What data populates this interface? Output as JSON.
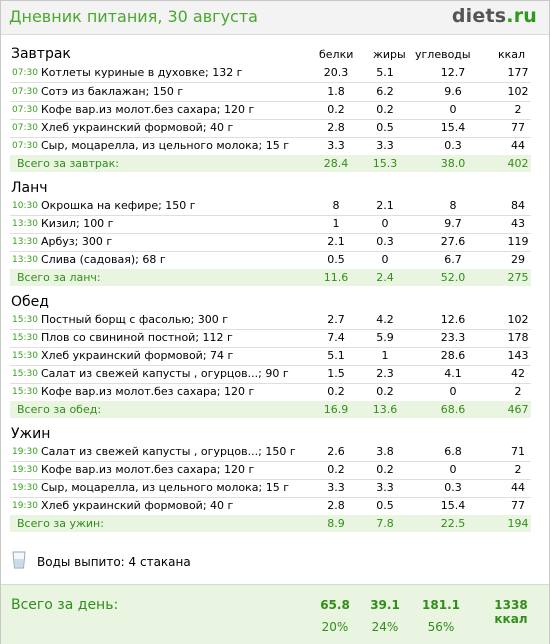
{
  "header": {
    "title": "Дневник питания, 30 августа",
    "logo_main": "diets",
    "logo_suffix": ".ru"
  },
  "columns": {
    "protein": "белки",
    "fat": "жиры",
    "carbs": "углеводы",
    "kcal": "ккал"
  },
  "sections": {
    "breakfast": {
      "name": "Завтрак",
      "rows": [
        {
          "time": "07:30",
          "name": "Котлеты куриные в духовке; 132 г",
          "p": "20.3",
          "f": "5.1",
          "c": "12.7",
          "k": "177"
        },
        {
          "time": "07:30",
          "name": "Сотэ из баклажан; 150 г",
          "p": "1.8",
          "f": "6.2",
          "c": "9.6",
          "k": "102"
        },
        {
          "time": "07:30",
          "name": "Кофе вар.из молот.без сахара; 120 г",
          "p": "0.2",
          "f": "0.2",
          "c": "0",
          "k": "2"
        },
        {
          "time": "07:30",
          "name": "Хлеб украинский формовой; 40 г",
          "p": "2.8",
          "f": "0.5",
          "c": "15.4",
          "k": "77"
        },
        {
          "time": "07:30",
          "name": "Сыр, моцарелла, из цельного молока; 15 г",
          "p": "3.3",
          "f": "3.3",
          "c": "0.3",
          "k": "44"
        }
      ],
      "total": {
        "label": "Всего за завтрак:",
        "p": "28.4",
        "f": "15.3",
        "c": "38.0",
        "k": "402"
      }
    },
    "lunch": {
      "name": "Ланч",
      "rows": [
        {
          "time": "10:30",
          "name": "Окрошка на кефире; 150 г",
          "p": "8",
          "f": "2.1",
          "c": "8",
          "k": "84"
        },
        {
          "time": "13:30",
          "name": "Кизил; 100 г",
          "p": "1",
          "f": "0",
          "c": "9.7",
          "k": "43"
        },
        {
          "time": "13:30",
          "name": "Арбуз; 300 г",
          "p": "2.1",
          "f": "0.3",
          "c": "27.6",
          "k": "119"
        },
        {
          "time": "13:30",
          "name": "Слива (садовая); 68 г",
          "p": "0.5",
          "f": "0",
          "c": "6.7",
          "k": "29"
        }
      ],
      "total": {
        "label": "Всего за ланч:",
        "p": "11.6",
        "f": "2.4",
        "c": "52.0",
        "k": "275"
      }
    },
    "dinner": {
      "name": "Обед",
      "rows": [
        {
          "time": "15:30",
          "name": "Постный борщ с фасолью; 300 г",
          "p": "2.7",
          "f": "4.2",
          "c": "12.6",
          "k": "102"
        },
        {
          "time": "15:30",
          "name": "Плов со свининой постной; 112 г",
          "p": "7.4",
          "f": "5.9",
          "c": "23.3",
          "k": "178"
        },
        {
          "time": "15:30",
          "name": "Хлеб украинский формовой; 74 г",
          "p": "5.1",
          "f": "1",
          "c": "28.6",
          "k": "143"
        },
        {
          "time": "15:30",
          "name": "Салат из свежей капусты , огурцов...; 90 г",
          "p": "1.5",
          "f": "2.3",
          "c": "4.1",
          "k": "42"
        },
        {
          "time": "15:30",
          "name": "Кофе вар.из молот.без сахара; 120 г",
          "p": "0.2",
          "f": "0.2",
          "c": "0",
          "k": "2"
        }
      ],
      "total": {
        "label": "Всего за обед:",
        "p": "16.9",
        "f": "13.6",
        "c": "68.6",
        "k": "467"
      }
    },
    "supper": {
      "name": "Ужин",
      "rows": [
        {
          "time": "19:30",
          "name": "Салат из свежей капусты , огурцов...; 150 г",
          "p": "2.6",
          "f": "3.8",
          "c": "6.8",
          "k": "71"
        },
        {
          "time": "19:30",
          "name": "Кофе вар.из молот.без сахара; 120 г",
          "p": "0.2",
          "f": "0.2",
          "c": "0",
          "k": "2"
        },
        {
          "time": "19:30",
          "name": "Сыр, моцарелла, из цельного молока; 15 г",
          "p": "3.3",
          "f": "3.3",
          "c": "0.3",
          "k": "44"
        },
        {
          "time": "19:30",
          "name": "Хлеб украинский формовой; 40 г",
          "p": "2.8",
          "f": "0.5",
          "c": "15.4",
          "k": "77"
        }
      ],
      "total": {
        "label": "Всего за ужин:",
        "p": "8.9",
        "f": "7.8",
        "c": "22.5",
        "k": "194"
      }
    }
  },
  "water": {
    "text": "Воды выпито: 4 стакана",
    "icon": "glass-icon"
  },
  "day_total": {
    "label": "Всего за день:",
    "p": "65.8",
    "f": "39.1",
    "c": "181.1",
    "k": "1338 ккал",
    "p_pct": "20%",
    "f_pct": "24%",
    "c_pct": "56%"
  },
  "colors": {
    "accent_green": "#2f8f18",
    "time_green": "#38a020",
    "total_bg": "#eaf5e1"
  }
}
